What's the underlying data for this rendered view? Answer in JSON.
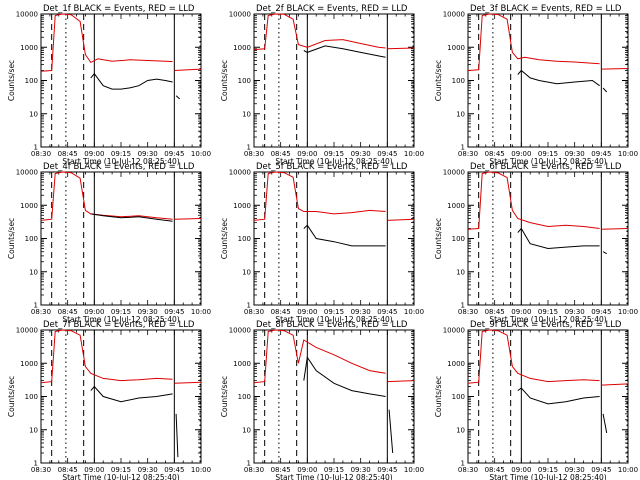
{
  "figure": {
    "colors": {
      "background": "#ffffff",
      "events": "#000000",
      "lld": "#dd0000",
      "axes": "#000000"
    },
    "legend_text": "BLACK = Events, RED = LLD"
  },
  "chart_data": [
    {
      "type": "line",
      "title": "Det_1f BLACK = Events, RED = LLD",
      "xlabel": "Start Time (10-Jul-12 08:25:40)",
      "ylabel": "Counts/sec",
      "yscale": "log",
      "ylim": [
        1,
        10000
      ],
      "xlim": [
        "08:30",
        "10:00"
      ],
      "xticks": [
        "08:30",
        "08:45",
        "09:00",
        "09:15",
        "09:30",
        "09:45",
        "10:00"
      ],
      "yticks": [
        "1",
        "10",
        "100",
        "1000",
        "10000"
      ],
      "series": [
        {
          "name": "RED",
          "x": [
            "08:30",
            "08:36",
            "08:38",
            "08:42",
            "08:47",
            "08:52",
            "08:55",
            "08:58",
            "09:02",
            "09:10",
            "09:20",
            "09:30",
            "09:40",
            "09:44"
          ],
          "y": [
            190,
            200,
            9000,
            10000,
            9500,
            6000,
            600,
            350,
            450,
            380,
            420,
            400,
            380,
            370
          ]
        },
        {
          "name": "BLACK",
          "x": [
            "08:58",
            "09:00",
            "09:05",
            "09:10",
            "09:15",
            "09:20",
            "09:25",
            "09:30",
            "09:35",
            "09:40",
            "09:44"
          ],
          "y": [
            120,
            160,
            70,
            55,
            55,
            60,
            70,
            100,
            110,
            100,
            90
          ]
        }
      ],
      "extra": {
        "red": [
          [
            "09:45",
            200
          ],
          [
            "10:00",
            220
          ]
        ],
        "black": [
          [
            "09:46",
            35
          ],
          [
            "09:48",
            28
          ]
        ]
      },
      "vlines": {
        "dashed": [
          "08:36",
          "08:54"
        ],
        "dotted": [
          "08:44"
        ],
        "solid": [
          "09:00",
          "09:45"
        ],
        "right_dotted": [
          "10:00"
        ]
      }
    },
    {
      "type": "line",
      "title": "Det_2f BLACK = Events, RED = LLD",
      "xlabel": "Start Time (10-Jul-12 08:25:40)",
      "ylabel": "Counts/sec",
      "yscale": "log",
      "ylim": [
        1,
        10000
      ],
      "xlim": [
        "08:30",
        "10:00"
      ],
      "xticks": [
        "08:30",
        "08:45",
        "09:00",
        "09:15",
        "09:30",
        "09:45",
        "10:00"
      ],
      "yticks": [
        "1",
        "10",
        "100",
        "1000",
        "10000"
      ],
      "series": [
        {
          "name": "RED",
          "x": [
            "08:30",
            "08:36",
            "08:38",
            "08:42",
            "08:47",
            "08:52",
            "08:55",
            "09:00",
            "09:10",
            "09:20",
            "09:30",
            "09:40",
            "09:44"
          ],
          "y": [
            850,
            900,
            9000,
            10000,
            9800,
            7000,
            1200,
            1000,
            1600,
            1700,
            1300,
            1000,
            950
          ]
        },
        {
          "name": "BLACK",
          "x": [
            "08:58",
            "09:00",
            "09:10",
            "09:20",
            "09:30",
            "09:40",
            "09:44"
          ],
          "y": [
            800,
            700,
            1100,
            900,
            700,
            550,
            500
          ]
        }
      ],
      "extra": {
        "red": [
          [
            "09:45",
            900
          ],
          [
            "10:00",
            950
          ]
        ],
        "black": []
      },
      "vlines": {
        "dashed": [
          "08:36",
          "08:54"
        ],
        "dotted": [
          "08:44"
        ],
        "solid": [
          "09:00",
          "09:45"
        ],
        "right_dotted": [
          "10:00"
        ]
      }
    },
    {
      "type": "line",
      "title": "Det_3f BLACK = Events, RED = LLD",
      "xlabel": "Start Time (10-Jul-12 08:25:40)",
      "ylabel": "Counts/sec",
      "yscale": "log",
      "ylim": [
        1,
        10000
      ],
      "xlim": [
        "08:30",
        "10:00"
      ],
      "xticks": [
        "08:30",
        "08:45",
        "09:00",
        "09:15",
        "09:30",
        "09:45",
        "10:00"
      ],
      "yticks": [
        "1",
        "10",
        "100",
        "1000",
        "10000"
      ],
      "series": [
        {
          "name": "RED",
          "x": [
            "08:30",
            "08:36",
            "08:38",
            "08:42",
            "08:47",
            "08:52",
            "08:55",
            "08:58",
            "09:02",
            "09:10",
            "09:20",
            "09:30",
            "09:40",
            "09:44"
          ],
          "y": [
            200,
            210,
            9000,
            10000,
            9600,
            7000,
            700,
            450,
            500,
            420,
            380,
            360,
            330,
            320
          ]
        },
        {
          "name": "BLACK",
          "x": [
            "08:58",
            "09:00",
            "09:05",
            "09:10",
            "09:20",
            "09:30",
            "09:40",
            "09:44"
          ],
          "y": [
            150,
            200,
            120,
            100,
            80,
            90,
            100,
            70
          ]
        }
      ],
      "extra": {
        "red": [
          [
            "09:45",
            220
          ],
          [
            "10:00",
            230
          ]
        ],
        "black": [
          [
            "09:46",
            60
          ],
          [
            "09:48",
            45
          ]
        ]
      },
      "vlines": {
        "dashed": [
          "08:36",
          "08:54"
        ],
        "dotted": [
          "08:44"
        ],
        "solid": [
          "09:00",
          "09:45"
        ],
        "right_dotted": [
          "10:00"
        ]
      }
    },
    {
      "type": "line",
      "title": "Det_4f BLACK = Events, RED = LLD",
      "xlabel": "Start Time (10-Jul-12 08:25:40)",
      "ylabel": "Counts/sec",
      "yscale": "log",
      "ylim": [
        1,
        10000
      ],
      "xlim": [
        "08:30",
        "10:00"
      ],
      "xticks": [
        "08:30",
        "08:45",
        "09:00",
        "09:15",
        "09:30",
        "09:45",
        "10:00"
      ],
      "yticks": [
        "1",
        "10",
        "100",
        "1000",
        "10000"
      ],
      "series": [
        {
          "name": "RED",
          "x": [
            "08:30",
            "08:36",
            "08:38",
            "08:42",
            "08:47",
            "08:52",
            "08:55",
            "08:58",
            "09:05",
            "09:15",
            "09:25",
            "09:35",
            "09:44"
          ],
          "y": [
            350,
            380,
            9000,
            10000,
            9500,
            6500,
            700,
            550,
            500,
            450,
            480,
            420,
            380
          ]
        },
        {
          "name": "BLACK",
          "x": [
            "08:58",
            "09:05",
            "09:15",
            "09:25",
            "09:35",
            "09:44"
          ],
          "y": [
            550,
            480,
            420,
            450,
            380,
            330
          ]
        }
      ],
      "extra": {
        "red": [
          [
            "09:45",
            380
          ],
          [
            "10:00",
            400
          ]
        ],
        "black": []
      },
      "vlines": {
        "dashed": [
          "08:36",
          "08:54"
        ],
        "dotted": [
          "08:44"
        ],
        "solid": [
          "09:00",
          "09:45"
        ],
        "right_dotted": [
          "10:00"
        ]
      }
    },
    {
      "type": "line",
      "title": "Det_5f BLACK = Events, RED = LLD",
      "xlabel": "Start Time (10-Jul-12 08:25:40)",
      "ylabel": "Counts/sec",
      "yscale": "log",
      "ylim": [
        1,
        10000
      ],
      "xlim": [
        "08:30",
        "10:00"
      ],
      "xticks": [
        "08:30",
        "08:45",
        "09:00",
        "09:15",
        "09:30",
        "09:45",
        "10:00"
      ],
      "yticks": [
        "1",
        "10",
        "100",
        "1000",
        "10000"
      ],
      "series": [
        {
          "name": "RED",
          "x": [
            "08:30",
            "08:36",
            "08:38",
            "08:42",
            "08:47",
            "08:52",
            "08:55",
            "08:58",
            "09:05",
            "09:15",
            "09:25",
            "09:35",
            "09:44"
          ],
          "y": [
            350,
            380,
            9000,
            10000,
            9500,
            7000,
            800,
            650,
            650,
            550,
            600,
            700,
            650
          ]
        },
        {
          "name": "BLACK",
          "x": [
            "08:58",
            "09:00",
            "09:05",
            "09:15",
            "09:25",
            "09:35",
            "09:44"
          ],
          "y": [
            200,
            250,
            100,
            80,
            60,
            60,
            60
          ]
        }
      ],
      "extra": {
        "red": [
          [
            "09:45",
            350
          ],
          [
            "10:00",
            380
          ]
        ],
        "black": []
      },
      "vlines": {
        "dashed": [
          "08:36",
          "08:54"
        ],
        "dotted": [
          "08:44"
        ],
        "solid": [
          "09:00",
          "09:45"
        ],
        "right_dotted": [
          "10:00"
        ]
      }
    },
    {
      "type": "line",
      "title": "Det_6f BLACK = Events, RED = LLD",
      "xlabel": "Start Time (10-Jul-12 08:25:40)",
      "ylabel": "Counts/sec",
      "yscale": "log",
      "ylim": [
        1,
        10000
      ],
      "xlim": [
        "08:30",
        "10:00"
      ],
      "xticks": [
        "08:30",
        "08:45",
        "09:00",
        "09:15",
        "09:30",
        "09:45",
        "10:00"
      ],
      "yticks": [
        "1",
        "10",
        "100",
        "1000",
        "10000"
      ],
      "series": [
        {
          "name": "RED",
          "x": [
            "08:30",
            "08:36",
            "08:38",
            "08:42",
            "08:47",
            "08:52",
            "08:55",
            "08:58",
            "09:05",
            "09:15",
            "09:25",
            "09:35",
            "09:44"
          ],
          "y": [
            190,
            200,
            9000,
            10000,
            9400,
            6800,
            700,
            400,
            300,
            230,
            250,
            230,
            200
          ]
        },
        {
          "name": "BLACK",
          "x": [
            "08:58",
            "09:00",
            "09:05",
            "09:15",
            "09:25",
            "09:35",
            "09:44"
          ],
          "y": [
            150,
            200,
            70,
            50,
            55,
            60,
            60
          ]
        }
      ],
      "extra": {
        "red": [
          [
            "09:45",
            190
          ],
          [
            "10:00",
            200
          ]
        ],
        "black": [
          [
            "09:46",
            40
          ],
          [
            "09:48",
            35
          ]
        ]
      },
      "vlines": {
        "dashed": [
          "08:36",
          "08:54"
        ],
        "dotted": [
          "08:44"
        ],
        "solid": [
          "09:00",
          "09:45"
        ],
        "right_dotted": [
          "10:00"
        ]
      }
    },
    {
      "type": "line",
      "title": "Det_7f BLACK = Events, RED = LLD",
      "xlabel": "Start Time (10-Jul-12 08:25:40)",
      "ylabel": "Counts/sec",
      "yscale": "log",
      "ylim": [
        1,
        10000
      ],
      "xlim": [
        "08:30",
        "10:00"
      ],
      "xticks": [
        "08:30",
        "08:45",
        "09:00",
        "09:15",
        "09:30",
        "09:45",
        "10:00"
      ],
      "yticks": [
        "1",
        "10",
        "100",
        "1000",
        "10000"
      ],
      "series": [
        {
          "name": "RED",
          "x": [
            "08:30",
            "08:36",
            "08:38",
            "08:42",
            "08:47",
            "08:52",
            "08:55",
            "08:58",
            "09:05",
            "09:15",
            "09:25",
            "09:35",
            "09:44"
          ],
          "y": [
            260,
            280,
            9000,
            10000,
            9500,
            7000,
            800,
            500,
            350,
            300,
            320,
            350,
            330
          ]
        },
        {
          "name": "BLACK",
          "x": [
            "08:58",
            "09:00",
            "09:05",
            "09:15",
            "09:25",
            "09:35",
            "09:44"
          ],
          "y": [
            150,
            200,
            100,
            70,
            90,
            100,
            120
          ]
        }
      ],
      "extra": {
        "red": [
          [
            "09:45",
            250
          ],
          [
            "10:00",
            270
          ]
        ],
        "black": [
          [
            "09:46",
            30
          ],
          [
            "09:47",
            1.5
          ]
        ]
      },
      "vlines": {
        "dashed": [
          "08:36",
          "08:54"
        ],
        "dotted": [
          "08:44"
        ],
        "solid": [
          "09:00",
          "09:45"
        ],
        "right_dotted": [
          "10:00"
        ]
      }
    },
    {
      "type": "line",
      "title": "Det_8f BLACK = Events, RED = LLD",
      "xlabel": "Start Time (10-Jul-12 08:25:40)",
      "ylabel": "Counts/sec",
      "yscale": "log",
      "ylim": [
        1,
        10000
      ],
      "xlim": [
        "08:30",
        "10:00"
      ],
      "xticks": [
        "08:30",
        "08:45",
        "09:00",
        "09:15",
        "09:30",
        "09:45",
        "10:00"
      ],
      "yticks": [
        "1",
        "10",
        "100",
        "1000",
        "10000"
      ],
      "series": [
        {
          "name": "RED",
          "x": [
            "08:30",
            "08:36",
            "08:38",
            "08:42",
            "08:47",
            "08:52",
            "08:55",
            "08:58",
            "09:05",
            "09:15",
            "09:25",
            "09:35",
            "09:44"
          ],
          "y": [
            260,
            280,
            9000,
            10000,
            9500,
            7000,
            1000,
            5000,
            3000,
            1800,
            1000,
            600,
            500
          ]
        },
        {
          "name": "BLACK",
          "x": [
            "08:58",
            "09:00",
            "09:05",
            "09:15",
            "09:25",
            "09:35",
            "09:44"
          ],
          "y": [
            300,
            1500,
            600,
            250,
            150,
            120,
            100
          ]
        }
      ],
      "extra": {
        "red": [
          [
            "09:45",
            280
          ],
          [
            "10:00",
            300
          ]
        ],
        "black": [
          [
            "09:46",
            40
          ],
          [
            "09:48",
            2
          ]
        ]
      },
      "vlines": {
        "dashed": [
          "08:36",
          "08:54"
        ],
        "dotted": [
          "08:44"
        ],
        "solid": [
          "09:00",
          "09:45"
        ],
        "right_dotted": [
          "10:00"
        ]
      }
    },
    {
      "type": "line",
      "title": "Det_9f BLACK = Events, RED = LLD",
      "xlabel": "Start Time (10-Jul-12 08:25:40)",
      "ylabel": "Counts/sec",
      "yscale": "log",
      "ylim": [
        1,
        10000
      ],
      "xlim": [
        "08:30",
        "10:00"
      ],
      "xticks": [
        "08:30",
        "08:45",
        "09:00",
        "09:15",
        "09:30",
        "09:45",
        "10:00"
      ],
      "yticks": [
        "1",
        "10",
        "100",
        "1000",
        "10000"
      ],
      "series": [
        {
          "name": "RED",
          "x": [
            "08:30",
            "08:36",
            "08:38",
            "08:42",
            "08:47",
            "08:52",
            "08:55",
            "08:58",
            "09:05",
            "09:15",
            "09:25",
            "09:35",
            "09:44"
          ],
          "y": [
            250,
            270,
            9000,
            10000,
            9500,
            7000,
            800,
            500,
            350,
            280,
            300,
            320,
            300
          ]
        },
        {
          "name": "BLACK",
          "x": [
            "08:58",
            "09:00",
            "09:05",
            "09:15",
            "09:25",
            "09:35",
            "09:44"
          ],
          "y": [
            150,
            180,
            90,
            60,
            70,
            90,
            100
          ]
        }
      ],
      "extra": {
        "red": [
          [
            "09:45",
            220
          ],
          [
            "10:00",
            240
          ]
        ],
        "black": [
          [
            "09:46",
            30
          ],
          [
            "09:48",
            8
          ]
        ]
      },
      "vlines": {
        "dashed": [
          "08:36",
          "08:54"
        ],
        "dotted": [
          "08:44"
        ],
        "solid": [
          "09:00",
          "09:45"
        ],
        "right_dotted": [
          "10:00"
        ]
      }
    }
  ]
}
